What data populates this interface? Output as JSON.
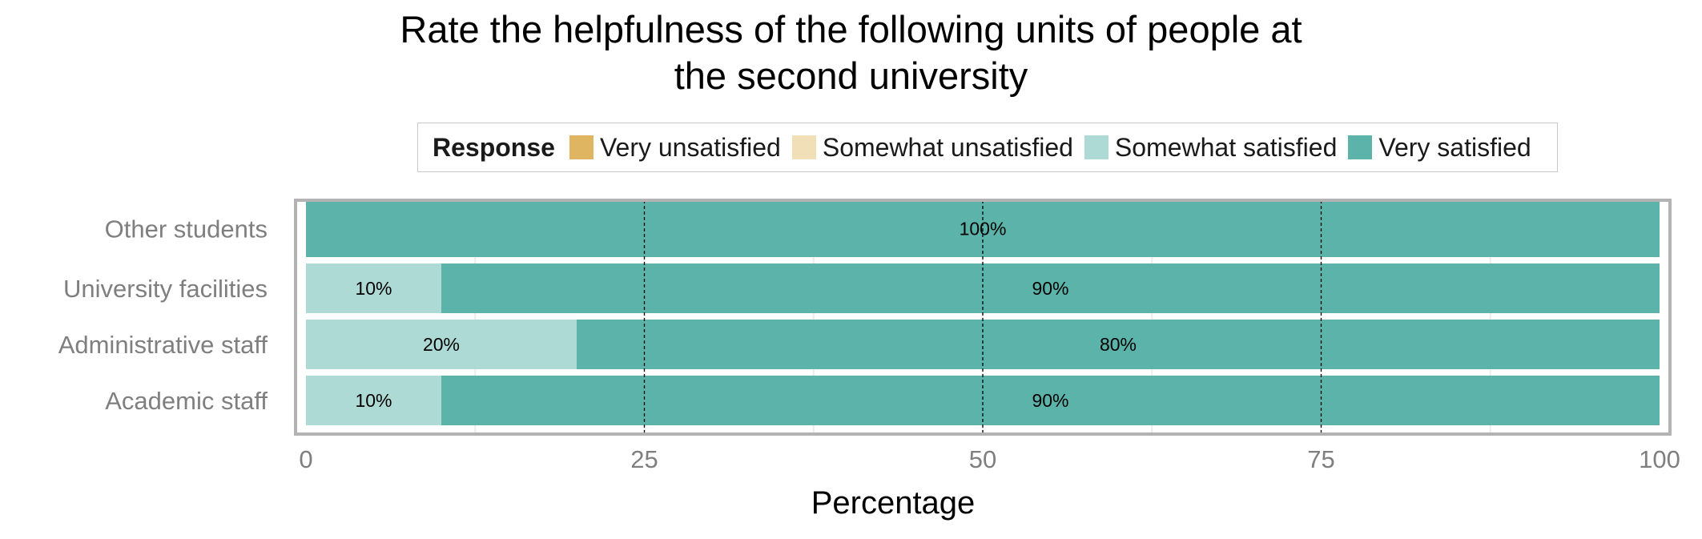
{
  "title_lines": [
    "Rate the helpfulness of the following units of people at",
    "the second university"
  ],
  "legend": {
    "title": "Response",
    "items": [
      {
        "label": "Very unsatisfied",
        "color": "#dfb561"
      },
      {
        "label": "Somewhat unsatisfied",
        "color": "#f1dfb8"
      },
      {
        "label": "Somewhat satisfied",
        "color": "#aedad6"
      },
      {
        "label": "Very satisfied",
        "color": "#5bb3aa"
      }
    ]
  },
  "chart_data": {
    "type": "bar",
    "orientation": "horizontal",
    "stacked": true,
    "title": "Rate the helpfulness of the following units of people at the second university",
    "xlabel": "Percentage",
    "ylabel": "",
    "xlim": [
      0,
      100
    ],
    "xticks": [
      "0",
      "25",
      "50",
      "75",
      "100"
    ],
    "categories": [
      "Other students",
      "University facilities",
      "Administrative staff",
      "Academic staff"
    ],
    "series": [
      {
        "name": "Very unsatisfied",
        "color": "#dfb561",
        "values": [
          0,
          0,
          0,
          0
        ]
      },
      {
        "name": "Somewhat unsatisfied",
        "color": "#f1dfb8",
        "values": [
          0,
          0,
          0,
          0
        ]
      },
      {
        "name": "Somewhat satisfied",
        "color": "#aedad6",
        "values": [
          0,
          10,
          20,
          10
        ],
        "labels": [
          "",
          "10%",
          "20%",
          "10%"
        ]
      },
      {
        "name": "Very satisfied",
        "color": "#5bb3aa",
        "values": [
          100,
          90,
          80,
          90
        ],
        "labels": [
          "100%",
          "90%",
          "80%",
          "90%"
        ]
      }
    ],
    "reference_lines": [
      25,
      50,
      75
    ],
    "legend_position": "top"
  }
}
